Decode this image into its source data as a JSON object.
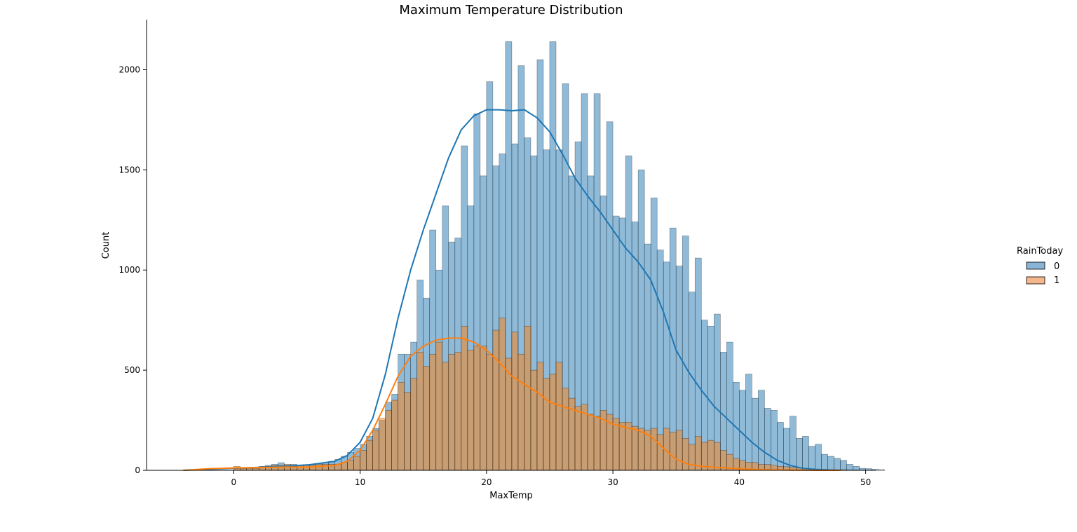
{
  "chart_data": {
    "type": "bar",
    "title": "Maximum Temperature Distribution",
    "xlabel": "MaxTemp",
    "ylabel": "Count",
    "xlim": [
      -6.9,
      50.8
    ],
    "ylim": [
      0,
      2250
    ],
    "xticks": [
      0,
      10,
      20,
      30,
      40,
      50
    ],
    "yticks": [
      0,
      500,
      1000,
      1500,
      2000
    ],
    "grid": false,
    "legend": {
      "title": "RainToday",
      "placement": "right"
    },
    "bin_start": 0.0,
    "bin_width": 0.5,
    "series": [
      {
        "name": "0",
        "color": "#1f77b4",
        "hist_color": "#89b4d6",
        "values": [
          10,
          8,
          10,
          12,
          20,
          25,
          30,
          38,
          28,
          30,
          25,
          28,
          30,
          35,
          38,
          45,
          55,
          70,
          90,
          110,
          130,
          170,
          210,
          250,
          340,
          380,
          580,
          580,
          640,
          950,
          860,
          1200,
          1000,
          1320,
          1140,
          1160,
          1620,
          1320,
          1780,
          1470,
          1940,
          1520,
          1580,
          2140,
          1630,
          2020,
          1660,
          1570,
          2050,
          1600,
          2140,
          1600,
          1930,
          1470,
          1640,
          1880,
          1470,
          1880,
          1370,
          1740,
          1270,
          1260,
          1570,
          1240,
          1500,
          1130,
          1360,
          1100,
          1040,
          1210,
          1020,
          1170,
          890,
          1060,
          750,
          720,
          780,
          590,
          640,
          440,
          400,
          480,
          360,
          400,
          310,
          300,
          240,
          210,
          270,
          160,
          170,
          120,
          130,
          80,
          70,
          60,
          50,
          30,
          20,
          10,
          8,
          5,
          3
        ],
        "kde_x": [
          -4,
          -2,
          0,
          2,
          4,
          6,
          8,
          9,
          10,
          11,
          12,
          13,
          14,
          15,
          16,
          17,
          18,
          19,
          20,
          21,
          22,
          23,
          24,
          25,
          26,
          27,
          28,
          29,
          30,
          31,
          32,
          33,
          34,
          35,
          36,
          37,
          38,
          39,
          40,
          41,
          42,
          43,
          44,
          45,
          46,
          48
        ],
        "kde_y": [
          0,
          5,
          10,
          15,
          20,
          28,
          45,
          75,
          140,
          260,
          480,
          760,
          1000,
          1200,
          1380,
          1560,
          1700,
          1770,
          1800,
          1800,
          1795,
          1800,
          1760,
          1690,
          1580,
          1460,
          1370,
          1290,
          1200,
          1110,
          1040,
          950,
          790,
          600,
          490,
          400,
          320,
          260,
          200,
          140,
          90,
          50,
          25,
          10,
          5,
          0
        ]
      },
      {
        "name": "1",
        "color": "#ff7f0e",
        "hist_color": "#f4b68b",
        "values": [
          20,
          10,
          10,
          10,
          15,
          20,
          25,
          25,
          30,
          20,
          25,
          25,
          25,
          30,
          30,
          30,
          30,
          40,
          50,
          70,
          100,
          150,
          200,
          260,
          300,
          350,
          440,
          390,
          460,
          590,
          520,
          580,
          640,
          540,
          580,
          590,
          720,
          600,
          620,
          620,
          580,
          700,
          760,
          560,
          690,
          580,
          720,
          500,
          540,
          460,
          480,
          540,
          410,
          360,
          320,
          330,
          280,
          270,
          300,
          280,
          260,
          240,
          240,
          220,
          210,
          200,
          210,
          180,
          210,
          190,
          200,
          160,
          130,
          170,
          140,
          150,
          140,
          100,
          80,
          60,
          50,
          40,
          40,
          30,
          30,
          25,
          20,
          18,
          15,
          12,
          10,
          8,
          6,
          5,
          4,
          3,
          3,
          2,
          2,
          1,
          1,
          1,
          1
        ],
        "kde_x": [
          -4,
          -2,
          0,
          2,
          4,
          6,
          8,
          9,
          10,
          11,
          12,
          13,
          14,
          15,
          16,
          17,
          18,
          19,
          20,
          21,
          22,
          23,
          24,
          25,
          26,
          27,
          28,
          29,
          30,
          31,
          32,
          33,
          34,
          35,
          36,
          37,
          38,
          39,
          40,
          41,
          42,
          43,
          44,
          45,
          46,
          48
        ],
        "kde_y": [
          0,
          8,
          12,
          14,
          16,
          16,
          25,
          45,
          100,
          200,
          330,
          470,
          570,
          620,
          650,
          660,
          660,
          640,
          600,
          540,
          470,
          430,
          390,
          340,
          320,
          300,
          280,
          260,
          230,
          215,
          200,
          170,
          110,
          55,
          30,
          20,
          15,
          12,
          8,
          5,
          3,
          2,
          1,
          1,
          0,
          0
        ]
      }
    ]
  }
}
